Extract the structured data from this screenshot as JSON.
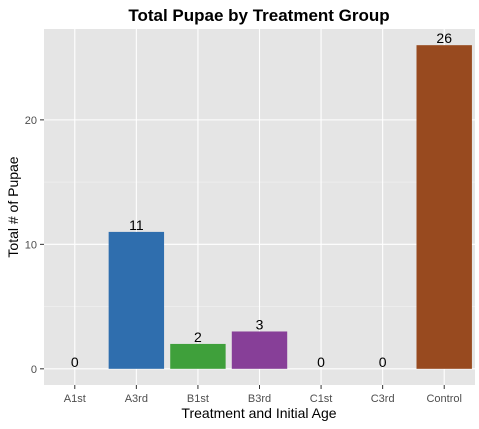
{
  "chart_data": {
    "type": "bar",
    "title": "Total Pupae by Treatment Group",
    "xlabel": "Treatment and Initial Age",
    "ylabel": "Total # of Pupae",
    "categories": [
      "A1st",
      "A3rd",
      "B1st",
      "B3rd",
      "C1st",
      "C3rd",
      "Control"
    ],
    "values": [
      0,
      11,
      2,
      3,
      0,
      0,
      26
    ],
    "colors": [
      "#2F6EAE",
      "#2F6EAE",
      "#3FA03B",
      "#873F98",
      "#873F98",
      "#873F98",
      "#984A1F"
    ],
    "yticks": [
      0,
      10,
      20
    ],
    "ylim": [
      -1.3,
      27.3
    ],
    "grid": true,
    "panel_background": "#E5E5E5",
    "grid_color": "#FFFFFF",
    "legend": "none"
  }
}
